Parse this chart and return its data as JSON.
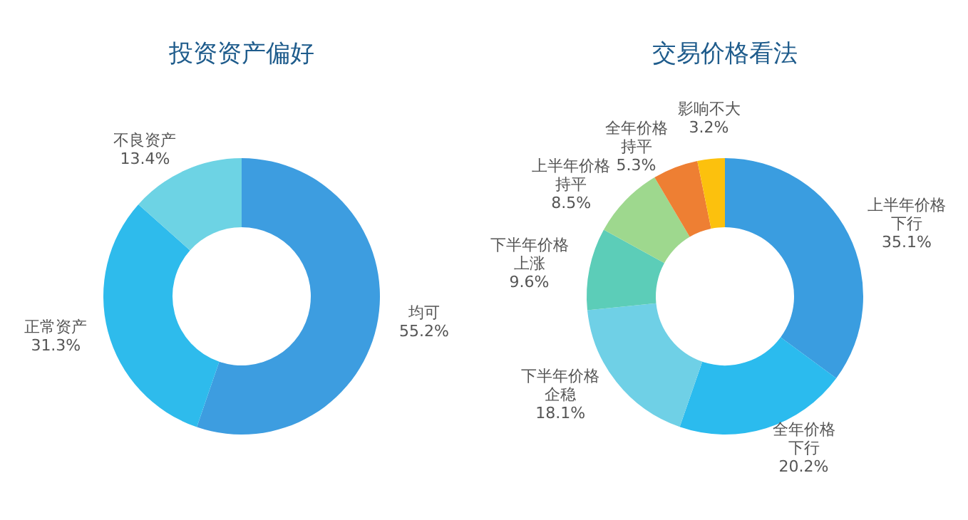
{
  "chart_data": [
    {
      "type": "donut",
      "title": "投资资产偏好",
      "categories": [
        "均可",
        "正常资产",
        "不良资产"
      ],
      "values": [
        55.2,
        31.3,
        13.4
      ],
      "value_labels": [
        "55.2%",
        "31.3%",
        "13.4%"
      ],
      "colors": [
        "#3d9de0",
        "#2ebbec",
        "#6dd3e4"
      ],
      "legend": false
    },
    {
      "type": "donut",
      "title": "交易价格看法",
      "categories": [
        "上半年价格下行",
        "全年价格下行",
        "下半年价格企稳",
        "下半年价格上涨",
        "上半年价格持平",
        "全年价格持平",
        "影响不大"
      ],
      "values": [
        35.1,
        20.2,
        18.1,
        9.6,
        8.5,
        5.3,
        3.2
      ],
      "value_labels": [
        "35.1%",
        "20.2%",
        "18.1%",
        "9.6%",
        "8.5%",
        "5.3%",
        "3.2%"
      ],
      "colors": [
        "#3a9de0",
        "#2bbbee",
        "#6fd0e6",
        "#5ccdb8",
        "#9ed88e",
        "#ee7f33",
        "#fcc10d"
      ],
      "legend": false
    }
  ]
}
